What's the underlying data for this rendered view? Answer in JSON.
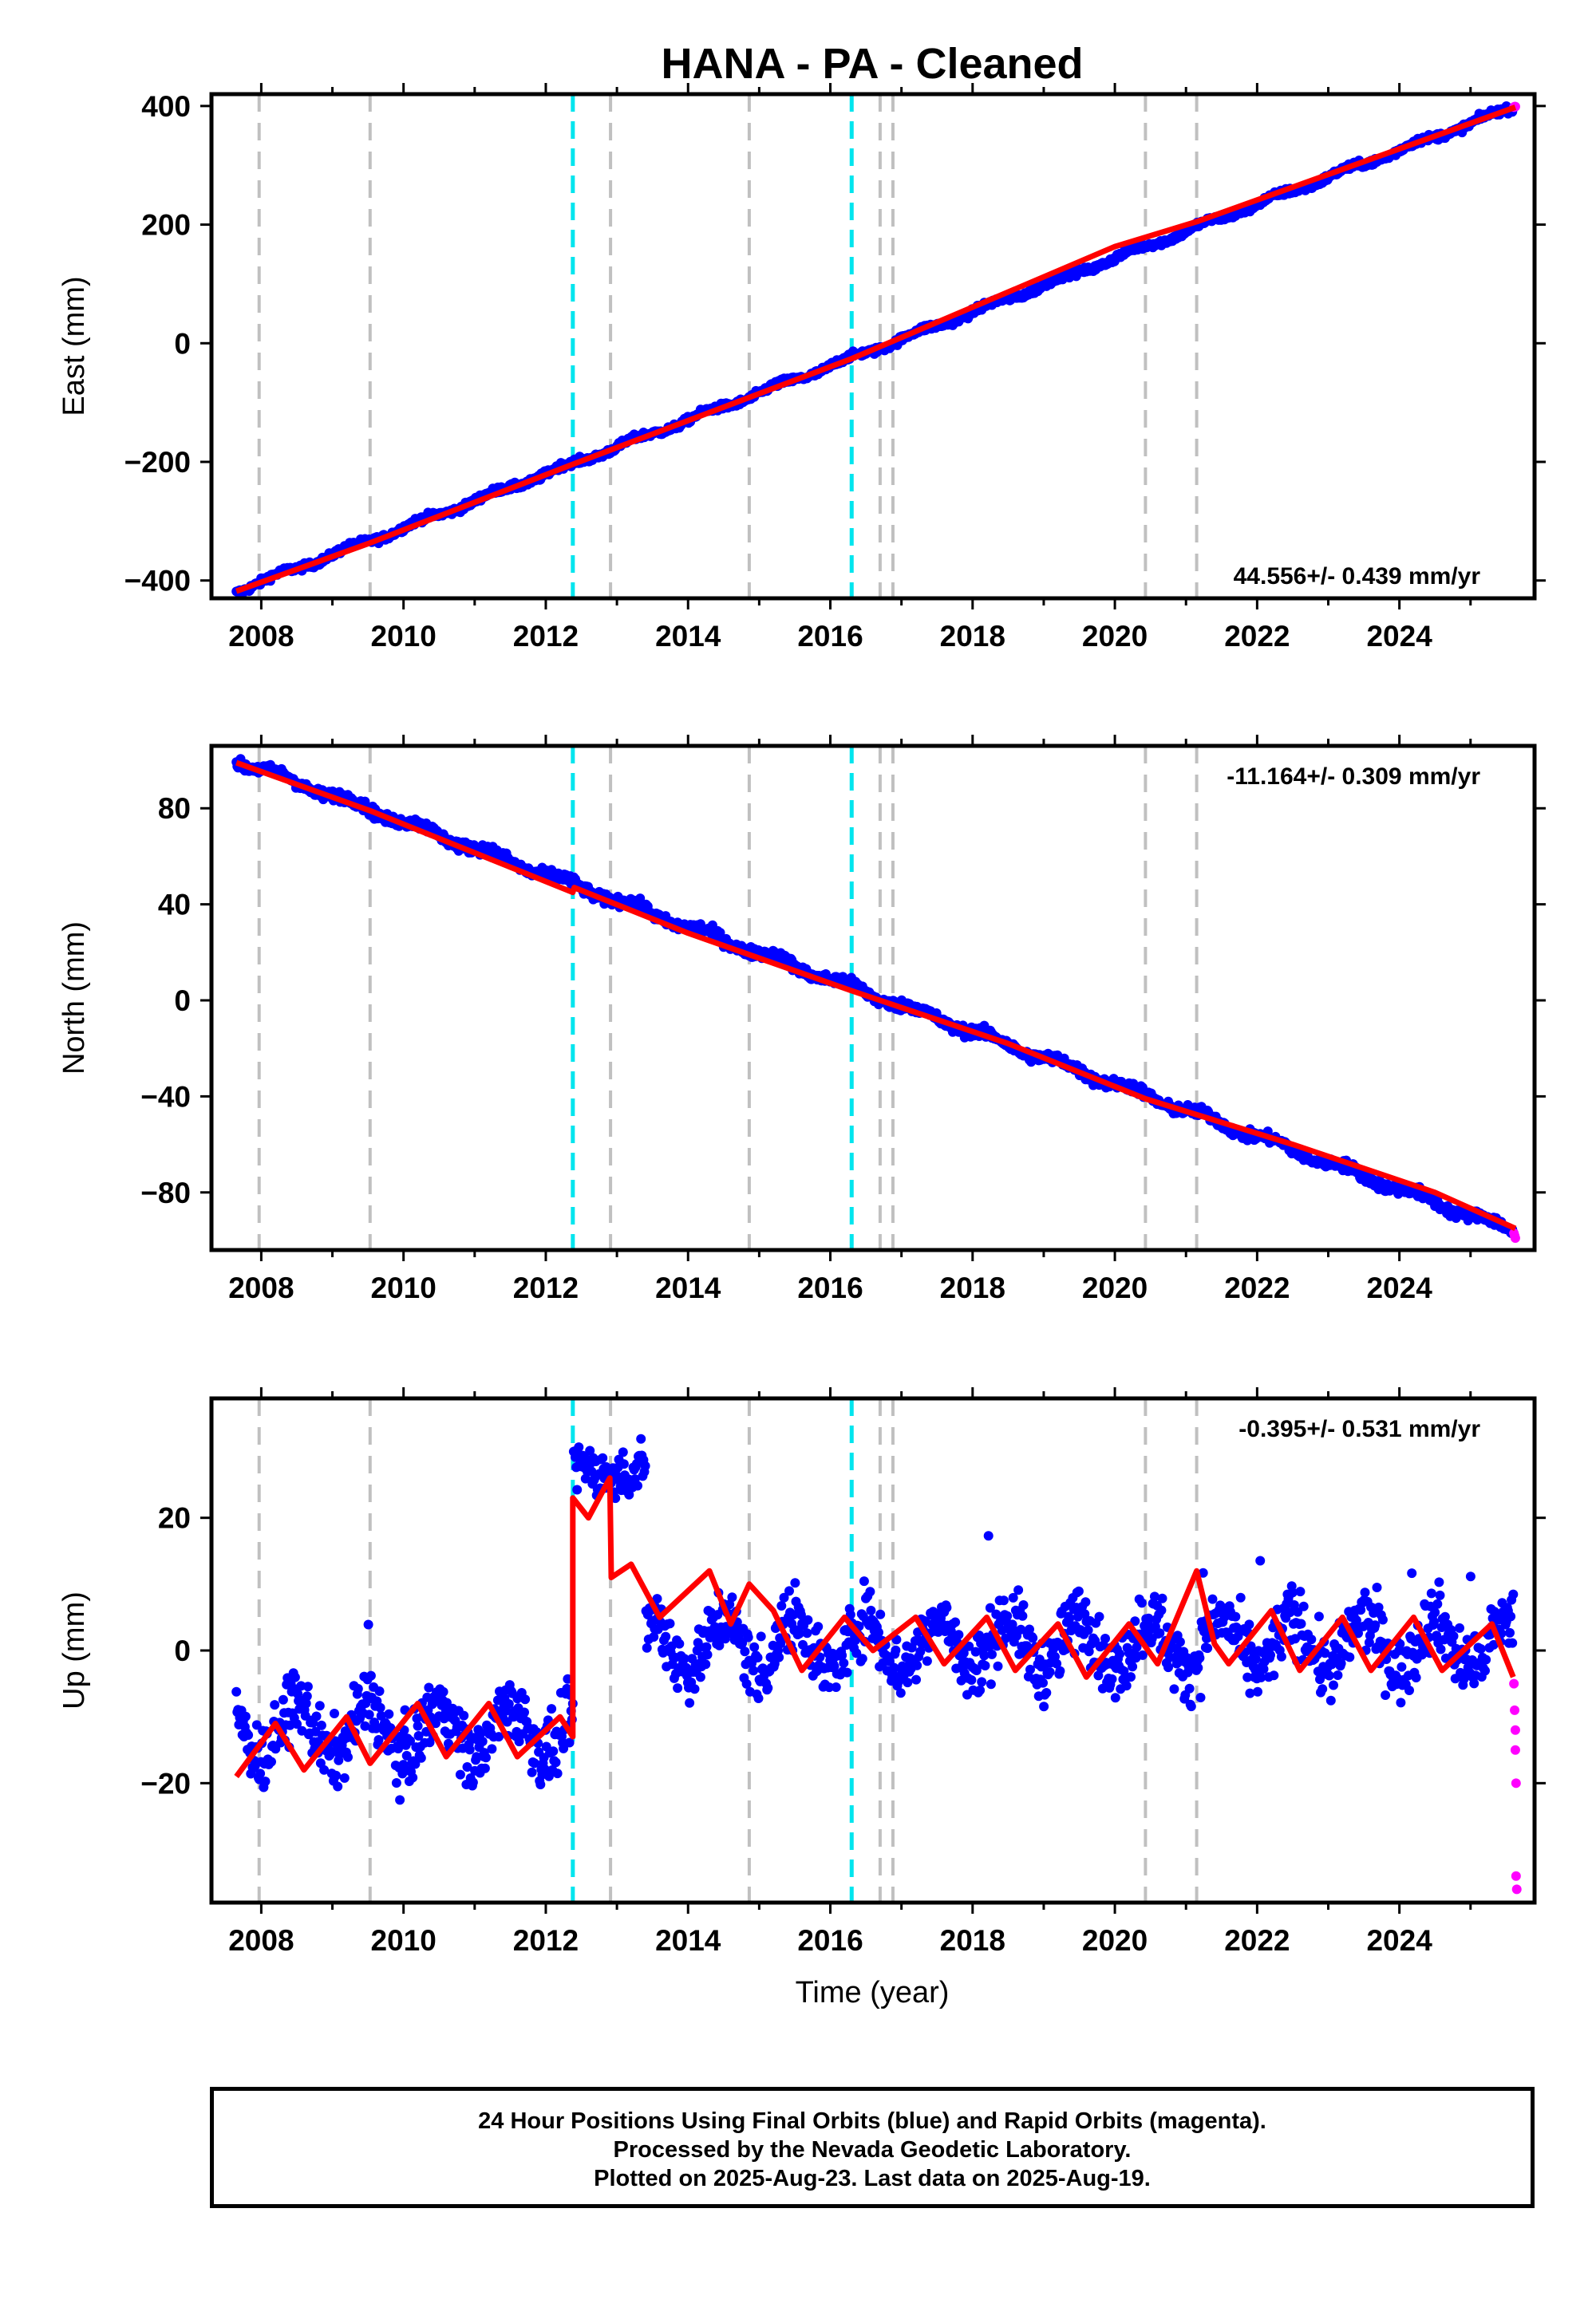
{
  "title": "HANA  - PA - Cleaned",
  "x_axis_label": "Time (year)",
  "footer_lines": [
    "24 Hour Positions Using Final Orbits (blue) and Rapid Orbits (magenta).",
    "Processed by the Nevada Geodetic Laboratory.",
    "Plotted on 2025-Aug-23. Last data on 2025-Aug-19."
  ],
  "colors": {
    "final_orbits": "#0000ff",
    "rapid_orbits": "#ff00ff",
    "model": "#ff0000",
    "equipment_change": "#c0c0c0",
    "earthquake": "#00e5ee"
  },
  "chart_data": [
    {
      "type": "scatter",
      "ylabel": "East (mm)",
      "xlim": [
        2007.3,
        2025.9
      ],
      "ylim": [
        -430,
        420
      ],
      "xticks": [
        2008,
        2010,
        2012,
        2014,
        2016,
        2018,
        2020,
        2022,
        2024
      ],
      "yticks": [
        -400,
        -200,
        0,
        200,
        400
      ],
      "rate_text": "44.556+/- 0.439 mm/yr",
      "rate_position": "bottom-right",
      "equipment_change_lines": [
        2007.97,
        2009.53,
        2012.91,
        2014.86,
        2016.7,
        2016.88,
        2020.43,
        2021.15
      ],
      "earthquake_lines": [
        2012.38,
        2016.3
      ],
      "series": [
        {
          "name": "Final Orbits",
          "color": "#0000ff",
          "start": 2007.65,
          "end": 2025.6,
          "trend_start": -418,
          "trend_end": 398,
          "seasonal_amplitude": 4,
          "scatter": 4
        },
        {
          "name": "Rapid Orbits",
          "color": "#ff00ff",
          "points": [
            [
              2025.61,
              398
            ],
            [
              2025.62,
              399
            ],
            [
              2025.63,
              399
            ]
          ]
        }
      ],
      "model": {
        "color": "#ff0000",
        "points": [
          [
            2007.65,
            -418
          ],
          [
            2009.5,
            -338
          ],
          [
            2012.38,
            -204
          ],
          [
            2016.3,
            -26
          ],
          [
            2020.0,
            163
          ],
          [
            2021.15,
            205
          ],
          [
            2025.63,
            398
          ]
        ]
      }
    },
    {
      "type": "scatter",
      "ylabel": "North (mm)",
      "xlim": [
        2007.3,
        2025.9
      ],
      "ylim": [
        -104,
        106
      ],
      "xticks": [
        2008,
        2010,
        2012,
        2014,
        2016,
        2018,
        2020,
        2022,
        2024
      ],
      "yticks": [
        -80,
        -40,
        0,
        40,
        80
      ],
      "rate_text": "-11.164+/- 0.309 mm/yr",
      "rate_position": "top-right",
      "equipment_change_lines": [
        2007.97,
        2009.53,
        2012.91,
        2014.86,
        2016.7,
        2016.88,
        2020.43,
        2021.15
      ],
      "earthquake_lines": [
        2012.38,
        2016.3
      ],
      "series": [
        {
          "name": "Final Orbits",
          "color": "#0000ff",
          "start": 2007.65,
          "end": 2025.6,
          "trend_start": 100,
          "trend_end": -96,
          "seasonal_amplitude": 1.5,
          "scatter": 1.6
        },
        {
          "name": "Rapid Orbits",
          "color": "#ff00ff",
          "points": [
            [
              2025.61,
              -97
            ],
            [
              2025.62,
              -98
            ],
            [
              2025.63,
              -99
            ]
          ]
        }
      ],
      "model": {
        "color": "#ff0000",
        "points": [
          [
            2007.65,
            99
          ],
          [
            2009.53,
            79
          ],
          [
            2012.38,
            45
          ],
          [
            2012.4,
            47
          ],
          [
            2014.0,
            28
          ],
          [
            2016.3,
            4
          ],
          [
            2018.5,
            -18
          ],
          [
            2020.43,
            -41
          ],
          [
            2022.5,
            -60
          ],
          [
            2024.5,
            -80
          ],
          [
            2025.63,
            -95
          ]
        ]
      }
    },
    {
      "type": "scatter",
      "ylabel": "Up (mm)",
      "xlim": [
        2007.3,
        2025.9
      ],
      "ylim": [
        -38,
        38
      ],
      "xticks": [
        2008,
        2010,
        2012,
        2014,
        2016,
        2018,
        2020,
        2022,
        2024
      ],
      "yticks": [
        -20,
        0,
        20
      ],
      "rate_text": "-0.395+/- 0.531 mm/yr",
      "rate_position": "top-right",
      "equipment_change_lines": [
        2007.97,
        2009.53,
        2012.91,
        2014.86,
        2016.7,
        2016.88,
        2020.43,
        2021.15
      ],
      "earthquake_lines": [
        2012.38,
        2016.3
      ],
      "series": [
        {
          "name": "Final Orbits",
          "color": "#0000ff",
          "start": 2007.65,
          "end": 2025.6,
          "segments": [
            {
              "from": 2007.65,
              "to": 2012.38,
              "level": -12,
              "seasonal_amplitude": 4,
              "scatter": 3.5
            },
            {
              "from": 2012.38,
              "to": 2013.4,
              "level": 27,
              "seasonal_amplitude": 1,
              "scatter": 2.5
            },
            {
              "from": 2013.4,
              "to": 2025.6,
              "level": 1,
              "seasonal_amplitude": 4,
              "scatter": 3.5
            }
          ]
        },
        {
          "name": "Rapid Orbits",
          "color": "#ff00ff",
          "points": [
            [
              2025.61,
              -5
            ],
            [
              2025.62,
              -9
            ],
            [
              2025.63,
              -12
            ],
            [
              2025.63,
              -15
            ],
            [
              2025.64,
              -20
            ],
            [
              2025.64,
              -34
            ],
            [
              2025.65,
              -36
            ]
          ]
        }
      ],
      "model": {
        "color": "#ff0000",
        "points": [
          [
            2007.65,
            -19
          ],
          [
            2008.2,
            -11
          ],
          [
            2008.6,
            -18
          ],
          [
            2009.2,
            -10
          ],
          [
            2009.53,
            -17
          ],
          [
            2010.2,
            -8
          ],
          [
            2010.6,
            -16
          ],
          [
            2011.2,
            -8
          ],
          [
            2011.6,
            -16
          ],
          [
            2012.2,
            -10
          ],
          [
            2012.38,
            -13
          ],
          [
            2012.38,
            23
          ],
          [
            2012.6,
            20
          ],
          [
            2012.9,
            26
          ],
          [
            2012.92,
            11
          ],
          [
            2013.2,
            13
          ],
          [
            2013.6,
            5
          ],
          [
            2014.3,
            12
          ],
          [
            2014.6,
            4
          ],
          [
            2014.86,
            10
          ],
          [
            2015.2,
            6
          ],
          [
            2015.6,
            -3
          ],
          [
            2016.2,
            5
          ],
          [
            2016.6,
            0
          ],
          [
            2017.2,
            5
          ],
          [
            2017.6,
            -2
          ],
          [
            2018.2,
            5
          ],
          [
            2018.6,
            -3
          ],
          [
            2019.2,
            4
          ],
          [
            2019.6,
            -4
          ],
          [
            2020.2,
            4
          ],
          [
            2020.6,
            -2
          ],
          [
            2021.15,
            12
          ],
          [
            2021.4,
            1
          ],
          [
            2021.6,
            -2
          ],
          [
            2022.2,
            6
          ],
          [
            2022.6,
            -3
          ],
          [
            2023.2,
            5
          ],
          [
            2023.6,
            -3
          ],
          [
            2024.2,
            5
          ],
          [
            2024.6,
            -3
          ],
          [
            2025.3,
            4
          ],
          [
            2025.6,
            -4
          ]
        ]
      }
    }
  ]
}
